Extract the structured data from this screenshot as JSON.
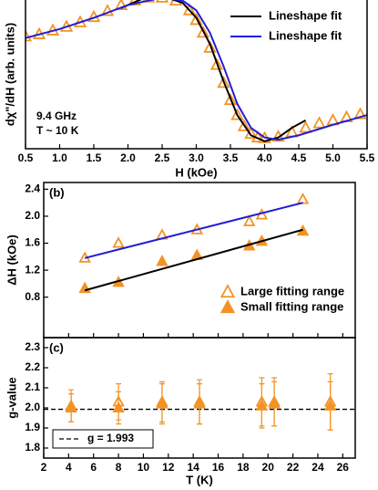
{
  "chart_data": [
    {
      "type": "line",
      "xlabel": "H (kOe)",
      "ylabel": "dχ\"/dH (arb. units)",
      "annotations": [
        "9.4 GHz",
        "T ~ 10 K"
      ],
      "xlim": [
        0.5,
        5.5
      ],
      "ylim": [
        -1,
        1
      ],
      "xticks": [
        0.5,
        {
          "value": 1,
          "label": "1.0"
        },
        1.5,
        {
          "value": 2,
          "label": "2.0"
        },
        2.5,
        {
          "value": 3,
          "label": "3.0"
        },
        3.5,
        {
          "value": 4,
          "label": "4.0"
        },
        4.5,
        {
          "value": 5,
          "label": "5.0"
        },
        5.5
      ],
      "legend": "upper right",
      "series": [
        {
          "color": "#f39325",
          "style": "triangle-open",
          "x": [
            0.5,
            0.7,
            0.9,
            1.1,
            1.3,
            1.5,
            1.7,
            1.9,
            2.1,
            2.3,
            2.5,
            2.7,
            2.9,
            3.0,
            3.1,
            3.2,
            3.3,
            3.4,
            3.5,
            3.6,
            3.7,
            3.8,
            3.9,
            4.0,
            4.2,
            4.4,
            4.6,
            4.8,
            5.0,
            5.2,
            5.4
          ],
          "values": [
            0.5,
            0.53,
            0.58,
            0.63,
            0.69,
            0.76,
            0.84,
            0.92,
            0.98,
            1.02,
            1.02,
            0.98,
            0.85,
            0.72,
            0.55,
            0.35,
            0.12,
            -0.12,
            -0.35,
            -0.55,
            -0.7,
            -0.8,
            -0.85,
            -0.86,
            -0.84,
            -0.78,
            -0.72,
            -0.66,
            -0.62,
            -0.58,
            -0.54
          ]
        },
        {
          "name": "Lineshape fit",
          "color": "#000000",
          "style": "line",
          "x": [
            1.9,
            2.2,
            2.5,
            2.8,
            3.0,
            3.2,
            3.4,
            3.6,
            3.8,
            4.0,
            4.2,
            4.4,
            4.6
          ],
          "values": [
            0.88,
            1.0,
            1.04,
            0.95,
            0.75,
            0.4,
            -0.1,
            -0.55,
            -0.82,
            -0.9,
            -0.85,
            -0.72,
            -0.62
          ]
        },
        {
          "name": "Lineshape fit",
          "color": "#1f1fd6",
          "style": "line",
          "x": [
            0.5,
            1.0,
            1.5,
            2.0,
            2.5,
            2.8,
            3.0,
            3.2,
            3.4,
            3.6,
            3.8,
            4.0,
            4.2,
            4.5,
            5.0,
            5.5
          ],
          "values": [
            0.48,
            0.6,
            0.75,
            0.92,
            1.02,
            0.98,
            0.85,
            0.55,
            0.1,
            -0.4,
            -0.72,
            -0.85,
            -0.88,
            -0.82,
            -0.68,
            -0.55
          ]
        }
      ]
    },
    {
      "type": "scatter",
      "panel_label": "(b)",
      "ylabel": "ΔH (kOe)",
      "show_xtick_labels": false,
      "xlim": [
        2,
        27
      ],
      "ylim": [
        0.2,
        2.5
      ],
      "xticks": [
        2,
        4,
        6,
        8,
        10,
        12,
        14,
        16,
        18,
        20,
        22,
        24,
        26
      ],
      "yticks": [
        0.8,
        1.2,
        1.6,
        {
          "value": 2,
          "label": "2.0"
        },
        2.4
      ],
      "legend": "lower right",
      "series": [
        {
          "name": "Large fitting range",
          "color": "#f39325",
          "style": "triangle-open",
          "x": [
            5.3,
            8,
            11.5,
            14.3,
            18.5,
            19.5,
            22.8
          ],
          "values": [
            1.38,
            1.6,
            1.72,
            1.8,
            1.92,
            2.02,
            2.25
          ]
        },
        {
          "name": "Small fitting range",
          "color": "#f39325",
          "style": "triangle",
          "x": [
            5.3,
            8,
            11.5,
            14.3,
            18.5,
            19.5,
            22.8
          ],
          "values": [
            0.93,
            1.02,
            1.33,
            1.42,
            1.56,
            1.63,
            1.78
          ]
        },
        {
          "color": "#1f1fd6",
          "style": "line",
          "x": [
            5.3,
            22.8
          ],
          "values": [
            1.38,
            2.2
          ]
        },
        {
          "color": "#000000",
          "style": "line",
          "x": [
            5.3,
            22.8
          ],
          "values": [
            0.9,
            1.8
          ]
        }
      ]
    },
    {
      "type": "scatter",
      "panel_label": "(c)",
      "xlabel": "T (K)",
      "ylabel": "g-value",
      "xlim": [
        2,
        27
      ],
      "ylim": [
        1.75,
        2.35
      ],
      "xticks": [
        2,
        4,
        6,
        8,
        10,
        12,
        14,
        16,
        18,
        20,
        22,
        24,
        26
      ],
      "yticks": [
        1.8,
        1.9,
        {
          "value": 2,
          "label": "2.0"
        },
        2.1,
        2.2,
        2.3
      ],
      "legend": "lower left",
      "reference": {
        "value": 1.993,
        "label": "g = 1.993"
      },
      "series": [
        {
          "color": "#f39325",
          "style": "triangle-open",
          "x": [
            4.2,
            8,
            11.5,
            14.5,
            19.5,
            20.5,
            25
          ],
          "values": [
            2.01,
            2.03,
            2.03,
            2.03,
            2.03,
            2.03,
            2.03
          ],
          "errors": [
            0.08,
            0.09,
            0.1,
            0.11,
            0.12,
            0.12,
            0.14
          ]
        },
        {
          "color": "#f39325",
          "style": "triangle",
          "x": [
            4.2,
            8,
            11.5,
            14.5,
            19.5,
            20.5,
            25
          ],
          "values": [
            2.0,
            2.0,
            2.02,
            2.02,
            2.01,
            2.02,
            2.01
          ],
          "errors": [
            0.07,
            0.08,
            0.1,
            0.1,
            0.11,
            0.11,
            0.12
          ]
        }
      ]
    }
  ]
}
